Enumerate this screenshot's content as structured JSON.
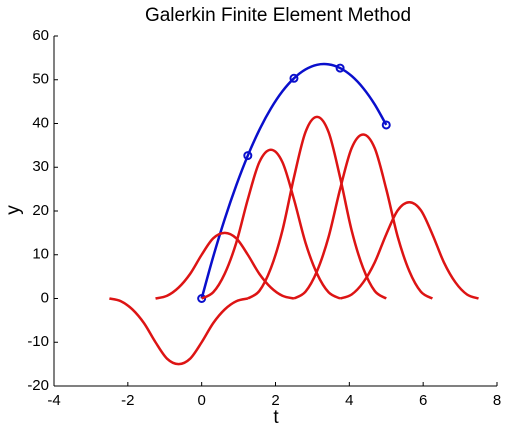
{
  "chart_data": {
    "type": "line",
    "title": "Galerkin Finite Element Method",
    "x_label": "t",
    "y_label": "y",
    "xlim": [
      -4,
      8
    ],
    "xticks": [
      -4,
      -2,
      0,
      2,
      4,
      6,
      8
    ],
    "ylim": [
      -20,
      60
    ],
    "yticks": [
      -20,
      -10,
      0,
      10,
      20,
      30,
      40,
      50,
      60
    ],
    "series": [
      {
        "color": "#0a0fcc",
        "marker": "none",
        "x": [
          0,
          0.3125,
          0.625,
          0.9375,
          1.25,
          1.5625,
          1.875,
          2.1875,
          2.5,
          2.8125,
          3.125,
          3.4375,
          3.75,
          4.0625,
          4.375,
          4.6875,
          5
        ],
        "values": [
          0,
          9.54,
          18.17,
          25.87,
          32.67,
          38.53,
          43.42,
          47.36,
          50.33,
          52.35,
          53.42,
          53.52,
          52.67,
          50.86,
          48.09,
          44.36,
          39.67
        ]
      },
      {
        "color": "#0a0fcc",
        "marker": "o",
        "x": [
          0,
          1.25,
          2.5,
          3.75,
          5
        ],
        "values": [
          0,
          32.67,
          50.33,
          52.67,
          39.67
        ]
      },
      {
        "color": "#dd1414",
        "marker": "none",
        "x": [
          -2.5,
          -2.1875,
          -1.875,
          -1.5625,
          -1.25,
          -0.9375,
          -0.625,
          -0.3125,
          0,
          0.3125,
          0.625,
          0.9375,
          1.25
        ],
        "values": [
          0,
          -0.63,
          -2.5,
          -5.63,
          -10,
          -13.75,
          -15,
          -13.75,
          -10,
          -5.63,
          -2.5,
          -0.63,
          0
        ]
      },
      {
        "color": "#dd1414",
        "marker": "none",
        "x": [
          -1.25,
          -0.9375,
          -0.625,
          -0.3125,
          0,
          0.3125,
          0.625,
          0.9375,
          1.25,
          1.5625,
          1.875,
          2.1875,
          2.5
        ],
        "values": [
          0,
          0.63,
          2.5,
          5.63,
          10,
          13.75,
          15,
          13.75,
          10,
          5.63,
          2.5,
          0.63,
          0
        ]
      },
      {
        "color": "#dd1414",
        "marker": "none",
        "x": [
          0,
          0.3125,
          0.625,
          0.9375,
          1.25,
          1.5625,
          1.875,
          2.1875,
          2.5,
          2.8125,
          3.125,
          3.4375,
          3.75
        ],
        "values": [
          0,
          1.42,
          5.67,
          12.75,
          22.67,
          31.17,
          34,
          31.17,
          22.67,
          12.75,
          5.67,
          1.42,
          0
        ]
      },
      {
        "color": "#dd1414",
        "marker": "none",
        "x": [
          1.25,
          1.5625,
          1.875,
          2.1875,
          2.5,
          2.8125,
          3.125,
          3.4375,
          3.75,
          4.0625,
          4.375,
          4.6875,
          5
        ],
        "values": [
          0,
          1.73,
          6.92,
          15.56,
          27.67,
          38.04,
          41.5,
          38.04,
          27.67,
          15.56,
          6.92,
          1.73,
          0
        ]
      },
      {
        "color": "#dd1414",
        "marker": "none",
        "x": [
          2.5,
          2.8125,
          3.125,
          3.4375,
          3.75,
          4.0625,
          4.375,
          4.6875,
          5,
          5.3125,
          5.625,
          5.9375,
          6.25
        ],
        "values": [
          0,
          1.56,
          6.25,
          14.06,
          25,
          34.38,
          37.5,
          34.38,
          25,
          14.06,
          6.25,
          1.56,
          0
        ]
      },
      {
        "color": "#dd1414",
        "marker": "none",
        "x": [
          3.75,
          4.0625,
          4.375,
          4.6875,
          5,
          5.3125,
          5.625,
          5.9375,
          6.25,
          6.5625,
          6.875,
          7.1875,
          7.5
        ],
        "values": [
          0,
          0.92,
          3.67,
          8.25,
          14.67,
          20.17,
          22,
          20.17,
          14.67,
          8.25,
          3.67,
          0.92,
          0
        ]
      }
    ]
  }
}
